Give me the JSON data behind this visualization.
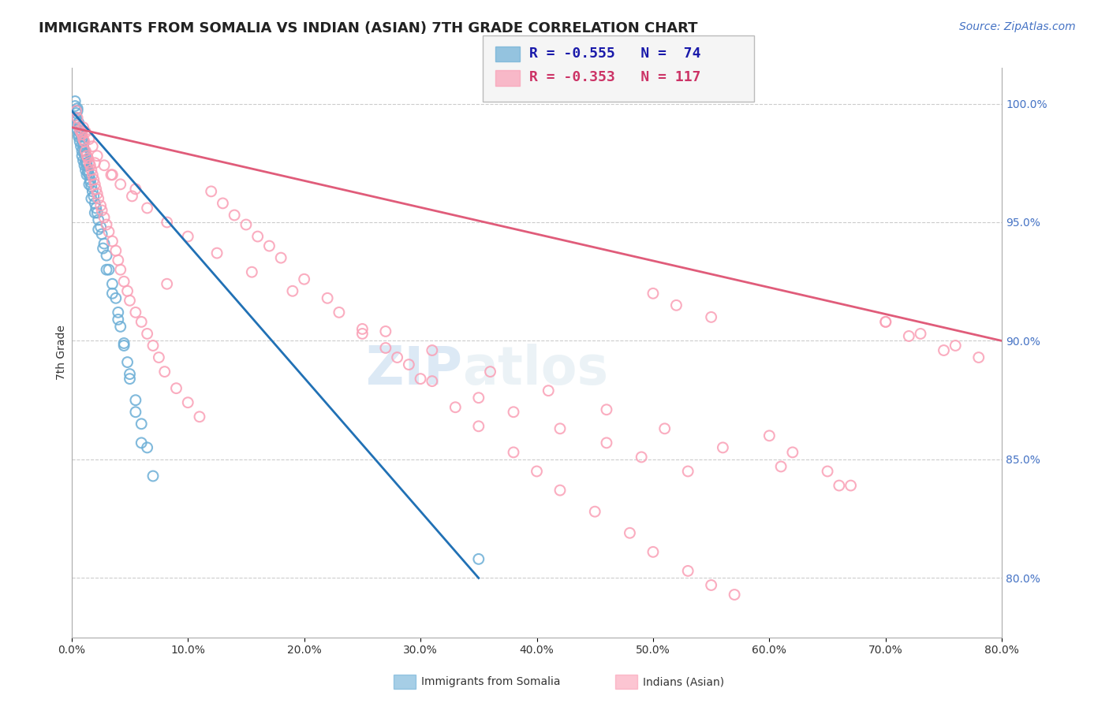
{
  "title": "IMMIGRANTS FROM SOMALIA VS INDIAN (ASIAN) 7TH GRADE CORRELATION CHART",
  "source": "Source: ZipAtlas.com",
  "ylabel": "7th Grade",
  "ytick_labels": [
    "100.0%",
    "95.0%",
    "90.0%",
    "85.0%",
    "80.0%"
  ],
  "ytick_values": [
    1.0,
    0.95,
    0.9,
    0.85,
    0.8
  ],
  "xlim": [
    0.0,
    0.8
  ],
  "ylim": [
    0.775,
    1.015
  ],
  "legend_blue_R": "R = -0.555",
  "legend_blue_N": "N =  74",
  "legend_pink_R": "R = -0.353",
  "legend_pink_N": "N = 117",
  "blue_color": "#6baed6",
  "pink_color": "#fa9fb5",
  "blue_line_color": "#2171b5",
  "pink_line_color": "#e05c7a",
  "legend_bg": "#f5f5f5",
  "blue_scatter_x": [
    0.005,
    0.005,
    0.006,
    0.007,
    0.007,
    0.008,
    0.009,
    0.01,
    0.01,
    0.01,
    0.011,
    0.011,
    0.012,
    0.012,
    0.013,
    0.013,
    0.014,
    0.014,
    0.015,
    0.016,
    0.016,
    0.017,
    0.018,
    0.019,
    0.02,
    0.021,
    0.022,
    0.023,
    0.025,
    0.026,
    0.028,
    0.03,
    0.032,
    0.035,
    0.038,
    0.04,
    0.042,
    0.045,
    0.048,
    0.05,
    0.055,
    0.06,
    0.065,
    0.07,
    0.003,
    0.003,
    0.004,
    0.004,
    0.004,
    0.005,
    0.005,
    0.006,
    0.006,
    0.007,
    0.008,
    0.009,
    0.009,
    0.01,
    0.011,
    0.012,
    0.013,
    0.015,
    0.017,
    0.02,
    0.023,
    0.027,
    0.03,
    0.035,
    0.04,
    0.045,
    0.05,
    0.055,
    0.06,
    0.35
  ],
  "blue_scatter_y": [
    0.998,
    0.997,
    0.992,
    0.99,
    0.988,
    0.987,
    0.985,
    0.983,
    0.982,
    0.984,
    0.98,
    0.979,
    0.978,
    0.976,
    0.975,
    0.974,
    0.972,
    0.971,
    0.97,
    0.968,
    0.967,
    0.965,
    0.963,
    0.961,
    0.958,
    0.956,
    0.954,
    0.951,
    0.948,
    0.945,
    0.941,
    0.936,
    0.93,
    0.924,
    0.918,
    0.912,
    0.906,
    0.899,
    0.891,
    0.886,
    0.875,
    0.865,
    0.855,
    0.843,
    1.001,
    0.999,
    0.996,
    0.994,
    0.993,
    0.991,
    0.989,
    0.987,
    0.986,
    0.984,
    0.982,
    0.98,
    0.978,
    0.976,
    0.974,
    0.972,
    0.97,
    0.966,
    0.96,
    0.954,
    0.947,
    0.939,
    0.93,
    0.92,
    0.909,
    0.898,
    0.884,
    0.87,
    0.857,
    0.808
  ],
  "pink_scatter_x": [
    0.004,
    0.005,
    0.006,
    0.007,
    0.008,
    0.009,
    0.01,
    0.011,
    0.012,
    0.013,
    0.014,
    0.015,
    0.016,
    0.017,
    0.018,
    0.019,
    0.02,
    0.021,
    0.022,
    0.023,
    0.025,
    0.026,
    0.028,
    0.03,
    0.032,
    0.035,
    0.038,
    0.04,
    0.042,
    0.045,
    0.048,
    0.05,
    0.055,
    0.06,
    0.065,
    0.07,
    0.075,
    0.08,
    0.09,
    0.1,
    0.11,
    0.12,
    0.13,
    0.14,
    0.15,
    0.16,
    0.17,
    0.18,
    0.2,
    0.22,
    0.25,
    0.28,
    0.3,
    0.33,
    0.35,
    0.38,
    0.4,
    0.42,
    0.45,
    0.48,
    0.5,
    0.53,
    0.55,
    0.57,
    0.6,
    0.62,
    0.65,
    0.67,
    0.7,
    0.72,
    0.75,
    0.01,
    0.012,
    0.015,
    0.018,
    0.022,
    0.028,
    0.034,
    0.042,
    0.052,
    0.065,
    0.082,
    0.1,
    0.125,
    0.155,
    0.19,
    0.23,
    0.27,
    0.31,
    0.36,
    0.41,
    0.46,
    0.51,
    0.56,
    0.61,
    0.66,
    0.7,
    0.73,
    0.76,
    0.78,
    0.02,
    0.035,
    0.055,
    0.082,
    0.5,
    0.52,
    0.55,
    0.25,
    0.27,
    0.29,
    0.31,
    0.35,
    0.38,
    0.42,
    0.46,
    0.49,
    0.53
  ],
  "pink_scatter_y": [
    0.997,
    0.994,
    0.991,
    0.989,
    0.988,
    0.987,
    0.985,
    0.984,
    0.98,
    0.978,
    0.977,
    0.975,
    0.974,
    0.972,
    0.97,
    0.968,
    0.966,
    0.964,
    0.962,
    0.96,
    0.957,
    0.955,
    0.952,
    0.949,
    0.946,
    0.942,
    0.938,
    0.934,
    0.93,
    0.925,
    0.921,
    0.917,
    0.912,
    0.908,
    0.903,
    0.898,
    0.893,
    0.887,
    0.88,
    0.874,
    0.868,
    0.963,
    0.958,
    0.953,
    0.949,
    0.944,
    0.94,
    0.935,
    0.926,
    0.918,
    0.905,
    0.893,
    0.884,
    0.872,
    0.864,
    0.853,
    0.845,
    0.837,
    0.828,
    0.819,
    0.811,
    0.803,
    0.797,
    0.793,
    0.86,
    0.853,
    0.845,
    0.839,
    0.908,
    0.902,
    0.896,
    0.99,
    0.988,
    0.985,
    0.982,
    0.978,
    0.974,
    0.97,
    0.966,
    0.961,
    0.956,
    0.95,
    0.944,
    0.937,
    0.929,
    0.921,
    0.912,
    0.904,
    0.896,
    0.887,
    0.879,
    0.871,
    0.863,
    0.855,
    0.847,
    0.839,
    0.908,
    0.903,
    0.898,
    0.893,
    0.975,
    0.97,
    0.964,
    0.924,
    0.92,
    0.915,
    0.91,
    0.903,
    0.897,
    0.89,
    0.883,
    0.876,
    0.87,
    0.863,
    0.857,
    0.851,
    0.845
  ],
  "blue_trendline_x": [
    0.0,
    0.35
  ],
  "blue_trendline_y": [
    0.997,
    0.8
  ],
  "pink_trendline_x": [
    0.0,
    0.8
  ],
  "pink_trendline_y": [
    0.99,
    0.9
  ],
  "grid_color": "#cccccc",
  "title_fontsize": 13,
  "axis_label_fontsize": 10,
  "tick_fontsize": 10,
  "source_fontsize": 10,
  "legend_fontsize": 13
}
